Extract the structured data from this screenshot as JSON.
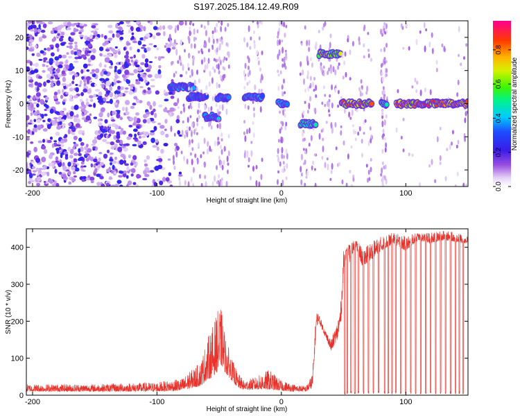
{
  "title": "S197.2025.184.12.49.R09",
  "chart_data": [
    {
      "type": "heatmap",
      "name": "spectrogram",
      "xlabel": "Height of straight line (km)",
      "ylabel": "Frequency (Hz)",
      "xlim": [
        -205,
        150
      ],
      "ylim": [
        -25,
        25
      ],
      "xticks": [
        -200,
        -100,
        0,
        100
      ],
      "yticks": [
        -20,
        -10,
        0,
        10,
        20
      ],
      "colorbar": {
        "label": "Normalized spectral amplitude",
        "range": [
          0,
          0.97
        ],
        "ticks": [
          0.0,
          0.2,
          0.4,
          0.6,
          0.8
        ],
        "colormap": "rainbow (white-violet-blue-cyan-green-yellow-orange-red)"
      },
      "features": [
        {
          "x_range": [
            -205,
            -80
          ],
          "freq_hz": "broadband -25..25",
          "amplitude": 0.15,
          "kind": "noise"
        },
        {
          "x_range": [
            -90,
            -70
          ],
          "freq_hz": 5,
          "amplitude": 0.45,
          "kind": "signal"
        },
        {
          "x_range": [
            -75,
            -60
          ],
          "freq_hz": 2,
          "amplitude": 0.4,
          "kind": "signal"
        },
        {
          "x_range": [
            -62,
            -50
          ],
          "freq_hz": -4,
          "amplitude": 0.45,
          "kind": "signal"
        },
        {
          "x_range": [
            -52,
            -42
          ],
          "freq_hz": 2,
          "amplitude": 0.4,
          "kind": "signal"
        },
        {
          "x_range": [
            -30,
            -15
          ],
          "freq_hz": 2,
          "amplitude": 0.45,
          "kind": "signal"
        },
        {
          "x_range": [
            -3,
            5
          ],
          "freq_hz": 0,
          "amplitude": 0.5,
          "kind": "signal"
        },
        {
          "x_range": [
            15,
            28
          ],
          "freq_hz": -6,
          "amplitude": 0.55,
          "kind": "signal"
        },
        {
          "x_range": [
            30,
            48
          ],
          "freq_hz": 15,
          "amplitude": 0.75,
          "kind": "signal"
        },
        {
          "x_range": [
            48,
            73
          ],
          "freq_hz": 0,
          "amplitude": 0.9,
          "kind": "signal"
        },
        {
          "x_range": [
            80,
            85
          ],
          "freq_hz": 0,
          "amplitude": 0.6,
          "kind": "signal"
        },
        {
          "x_range": [
            92,
            150
          ],
          "freq_hz": 0,
          "amplitude": 0.95,
          "kind": "signal"
        }
      ]
    },
    {
      "type": "line",
      "name": "snr",
      "xlabel": "Height of straight line (km)",
      "ylabel": "SNR (10 * v/v)",
      "xlim": [
        -205,
        150
      ],
      "ylim": [
        0,
        450
      ],
      "xticks": [
        -200,
        -100,
        0,
        100
      ],
      "yticks": [
        0,
        100,
        200,
        300,
        400
      ],
      "color": "#e8332c",
      "envelope": {
        "x": [
          -205,
          -150,
          -100,
          -80,
          -65,
          -60,
          -55,
          -50,
          -48,
          -45,
          -40,
          -35,
          -30,
          -20,
          -10,
          0,
          10,
          20,
          25,
          28,
          30,
          35,
          40,
          45,
          48,
          50,
          52,
          55,
          58,
          60,
          65,
          70,
          80,
          90,
          100,
          110,
          120,
          130,
          140,
          150
        ],
        "base": [
          10,
          10,
          10,
          12,
          25,
          40,
          50,
          70,
          80,
          60,
          40,
          20,
          15,
          15,
          15,
          12,
          10,
          10,
          20,
          180,
          200,
          160,
          120,
          150,
          200,
          340,
          370,
          360,
          390,
          400,
          350,
          360,
          390,
          410,
          390,
          420,
          410,
          420,
          415,
          410
        ],
        "peak": [
          30,
          30,
          35,
          45,
          90,
          150,
          190,
          240,
          230,
          160,
          100,
          60,
          40,
          50,
          70,
          40,
          30,
          25,
          60,
          230,
          220,
          180,
          150,
          200,
          260,
          390,
          400,
          410,
          420,
          420,
          400,
          410,
          430,
          440,
          430,
          440,
          440,
          445,
          440,
          430
        ]
      },
      "dropouts_x": [
        51,
        53,
        56,
        59,
        62,
        66,
        70,
        74,
        78,
        83,
        86,
        89,
        92,
        96,
        100,
        104,
        108,
        112,
        116,
        120,
        124,
        128,
        132,
        136,
        140,
        143,
        146
      ]
    }
  ]
}
